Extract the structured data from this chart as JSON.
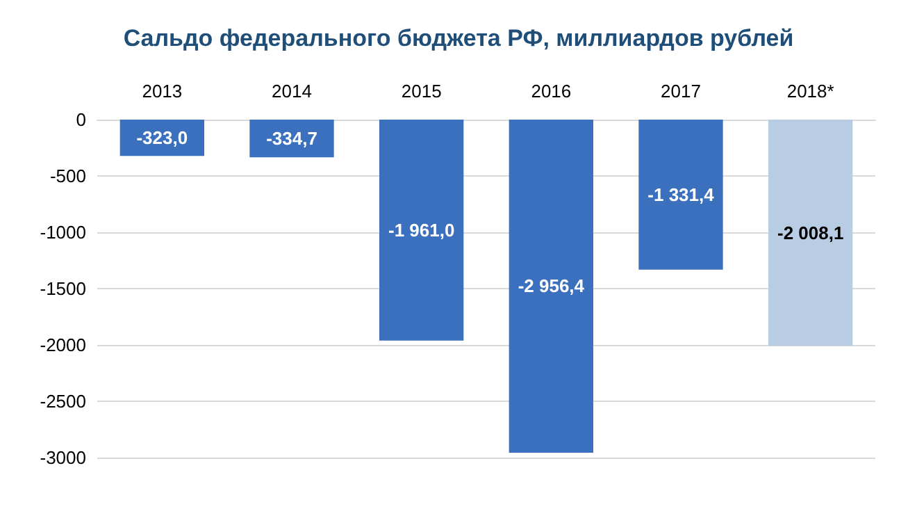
{
  "chart_data": {
    "type": "bar",
    "title": "Сальдо федерального бюджета РФ, миллиардов рублей",
    "categories": [
      "2013",
      "2014",
      "2015",
      "2016",
      "2017",
      "2018*"
    ],
    "values": [
      -323.0,
      -334.7,
      -1961.0,
      -2956.4,
      -1331.4,
      -2008.1
    ],
    "colors": [
      "#3a70bd",
      "#3a70bd",
      "#3a70bd",
      "#3a70bd",
      "#3a70bd",
      "#b8cce4"
    ],
    "value_labels": [
      "-323,0",
      "-334,7",
      "-1 961,0",
      "-2 956,4",
      "-1 331,4",
      "-2 008,1"
    ],
    "ylim": [
      -3000,
      0
    ],
    "yticks": [
      -3000,
      -2500,
      -2000,
      -1500,
      -1000,
      -500,
      0
    ],
    "grid": "y"
  }
}
